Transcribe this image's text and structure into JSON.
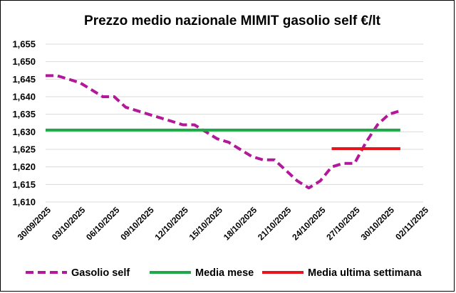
{
  "chart_data": {
    "type": "line",
    "title": "Prezzo medio nazionale MIMIT gasolio self €/lt",
    "xlabel": "",
    "ylabel": "",
    "ylim": [
      1.61,
      1.655
    ],
    "y_ticks": [
      "1,610",
      "1,615",
      "1,620",
      "1,625",
      "1,630",
      "1,635",
      "1,640",
      "1,645",
      "1,650",
      "1,655"
    ],
    "y_tick_values": [
      1.61,
      1.615,
      1.62,
      1.625,
      1.63,
      1.635,
      1.64,
      1.645,
      1.65,
      1.655
    ],
    "x_ticks": [
      "30/09/2025",
      "03/10/2025",
      "06/10/2025",
      "09/10/2025",
      "12/10/2025",
      "15/10/2025",
      "18/10/2025",
      "21/10/2025",
      "24/10/2025",
      "27/10/2025",
      "30/10/2025",
      "02/11/2025"
    ],
    "x_tick_days": [
      0,
      3,
      6,
      9,
      12,
      15,
      18,
      21,
      24,
      27,
      30,
      33
    ],
    "grid": true,
    "legend_position": "bottom",
    "series": [
      {
        "name": "Gasolio self",
        "color": "#b3179a",
        "style": "dashed",
        "x_days": [
          0,
          1,
          2,
          3,
          4,
          5,
          6,
          7,
          8,
          9,
          10,
          11,
          12,
          13,
          14,
          15,
          16,
          17,
          18,
          19,
          20,
          21,
          22,
          23,
          24,
          25,
          26,
          27,
          28,
          29,
          30,
          31
        ],
        "values": [
          1.646,
          1.646,
          1.645,
          1.644,
          1.642,
          1.64,
          1.64,
          1.637,
          1.636,
          1.635,
          1.634,
          1.633,
          1.632,
          1.632,
          1.63,
          1.628,
          1.627,
          1.625,
          1.623,
          1.622,
          1.622,
          1.619,
          1.616,
          1.614,
          1.616,
          1.62,
          1.621,
          1.621,
          1.627,
          1.632,
          1.635,
          1.636
        ]
      },
      {
        "name": "Media mese",
        "color": "#1fa84a",
        "style": "solid",
        "x_days": [
          0,
          31
        ],
        "values": [
          1.6305,
          1.6305
        ]
      },
      {
        "name": "Media ultima settimana",
        "color": "#e8141b",
        "style": "solid",
        "x_days": [
          25,
          31
        ],
        "values": [
          1.6252,
          1.6252
        ]
      }
    ]
  }
}
